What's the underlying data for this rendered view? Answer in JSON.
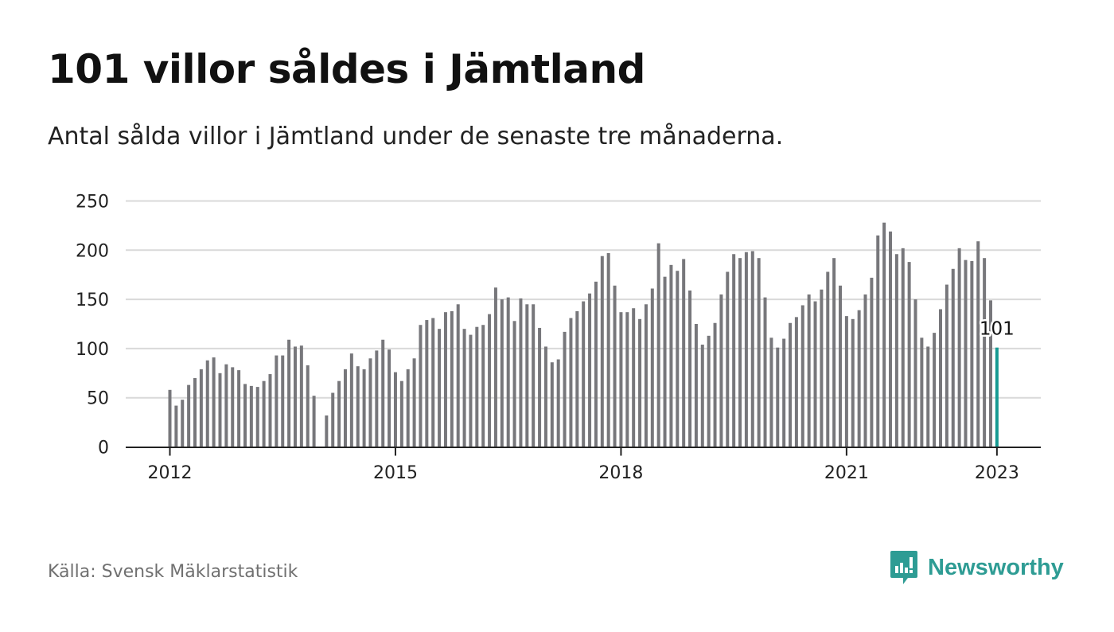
{
  "header": {
    "title": "101 villor såldes i Jämtland",
    "subtitle": "Antal sålda villor i Jämtland under de senaste tre månaderna."
  },
  "footer": {
    "source": "Källa: Svensk Mäklarstatistik",
    "brand_name": "Newsworthy"
  },
  "colors": {
    "bar": "#77777b",
    "highlight": "#169b93",
    "grid": "#d9d9d9",
    "axis": "#222222",
    "brand": "#2e9c94"
  },
  "chart_data": {
    "type": "bar",
    "title": "101 villor såldes i Jämtland",
    "subtitle": "Antal sålda villor i Jämtland under de senaste tre månaderna.",
    "xlabel": "",
    "ylabel": "",
    "ylim": [
      0,
      250
    ],
    "yticks": [
      0,
      50,
      100,
      150,
      200,
      250
    ],
    "xticks": [
      {
        "label": "2012",
        "index": 0
      },
      {
        "label": "2015",
        "index": 36
      },
      {
        "label": "2018",
        "index": 72
      },
      {
        "label": "2021",
        "index": 108
      },
      {
        "label": "2023",
        "index": 132
      }
    ],
    "grid": true,
    "start": "2012-01",
    "frequency": "monthly",
    "values": [
      58,
      42,
      48,
      63,
      70,
      79,
      88,
      91,
      75,
      84,
      81,
      78,
      64,
      62,
      61,
      67,
      74,
      93,
      93,
      109,
      102,
      103,
      83,
      52,
      null,
      32,
      55,
      67,
      79,
      95,
      82,
      79,
      90,
      98,
      109,
      99,
      76,
      67,
      79,
      90,
      124,
      129,
      131,
      120,
      137,
      138,
      145,
      120,
      114,
      122,
      124,
      135,
      162,
      150,
      152,
      128,
      151,
      145,
      145,
      121,
      102,
      86,
      89,
      117,
      131,
      138,
      148,
      156,
      168,
      194,
      197,
      164,
      137,
      137,
      141,
      130,
      145,
      161,
      207,
      173,
      185,
      179,
      191,
      159,
      125,
      104,
      113,
      126,
      155,
      178,
      196,
      192,
      198,
      199,
      192,
      152,
      111,
      101,
      110,
      126,
      132,
      144,
      155,
      148,
      160,
      178,
      192,
      164,
      133,
      130,
      139,
      155,
      172,
      215,
      228,
      219,
      196,
      202,
      188,
      150,
      111,
      102,
      116,
      140,
      165,
      181,
      202,
      190,
      189,
      209,
      192,
      149,
      101
    ],
    "highlight": {
      "index": 132,
      "label": "101"
    }
  }
}
